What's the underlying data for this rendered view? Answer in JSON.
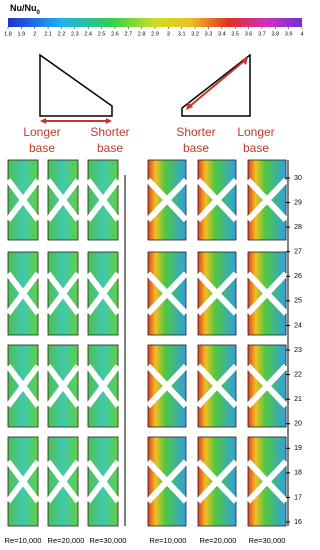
{
  "colorbar": {
    "title": "Nu/Nu",
    "title_sub": "0",
    "range": [
      1.8,
      4
    ],
    "ticks": [
      1.8,
      1.9,
      2,
      2.1,
      2.2,
      2.3,
      2.4,
      2.5,
      2.6,
      2.7,
      2.8,
      2.9,
      3,
      3.1,
      3.2,
      3.3,
      3.4,
      3.5,
      3.6,
      3.7,
      3.8,
      3.9,
      4
    ]
  },
  "left_labels": [
    [
      "Longer",
      "base"
    ],
    [
      "Shorter",
      "base"
    ]
  ],
  "right_labels": [
    [
      "Shorter",
      "base"
    ],
    [
      "Longer",
      "base"
    ]
  ],
  "left_re": [
    "Re=10,000",
    "Re=20,000",
    "Re=30,000"
  ],
  "right_re": [
    "Re=10,000",
    "Re=20,000",
    "Re=30,000"
  ],
  "rib_axis": {
    "range": [
      16,
      30
    ],
    "ticks": [
      16,
      17,
      18,
      19,
      20,
      21,
      22,
      23,
      24,
      25,
      26,
      27,
      28,
      29,
      30
    ]
  }
}
